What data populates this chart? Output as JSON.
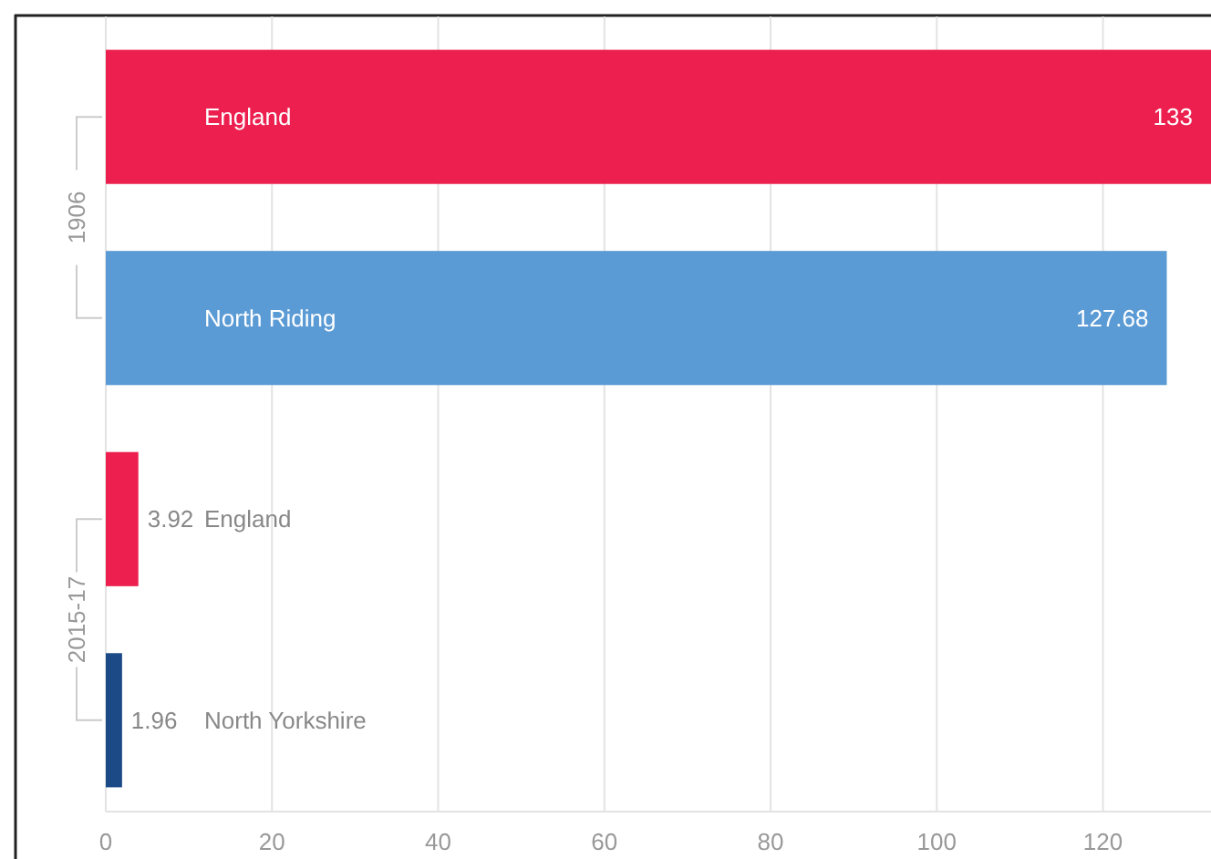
{
  "chart_data": {
    "type": "bar",
    "orientation": "horizontal",
    "categories": [
      "England",
      "North Riding",
      "England",
      "North Yorkshire"
    ],
    "values": [
      133,
      127.68,
      3.92,
      1.96
    ],
    "colors": [
      "#ec1f4f",
      "#5b9bd5",
      "#ec1f4f",
      "#1b4a86"
    ],
    "xlim": [
      0,
      133
    ],
    "xticks": [
      0,
      20,
      40,
      60,
      80,
      100,
      120
    ],
    "grid": "x",
    "data_labels": true,
    "annotations": [
      "1906",
      "2015-17"
    ]
  }
}
